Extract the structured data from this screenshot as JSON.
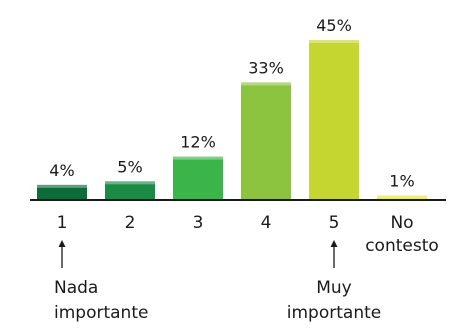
{
  "chart_data": {
    "type": "bar",
    "categories": [
      "1",
      "2",
      "3",
      "4",
      "5",
      "No contesto"
    ],
    "category_lines": [
      [
        "1"
      ],
      [
        "2"
      ],
      [
        "3"
      ],
      [
        "4"
      ],
      [
        "5"
      ],
      [
        "No",
        "contesto"
      ]
    ],
    "values": [
      4,
      5,
      12,
      33,
      45,
      1
    ],
    "value_labels": [
      "4%",
      "5%",
      "12%",
      "33%",
      "45%",
      "1%"
    ],
    "unit": "%",
    "title": "",
    "xlabel": "",
    "ylabel": "",
    "ylim": [
      0,
      45
    ],
    "grid": false,
    "legend": "none",
    "bar_colors": [
      "#0e6b3a",
      "#1a8a45",
      "#3bb54a",
      "#8cc43f",
      "#c6d631",
      "#e7e63c"
    ],
    "bar_highlight": "#ffffff",
    "axis_color": "#1a1a1a",
    "annotations": [
      {
        "category_index": 0,
        "lines": [
          "Nada",
          "importante"
        ]
      },
      {
        "category_index": 4,
        "lines": [
          "Muy",
          "importante"
        ]
      }
    ]
  }
}
